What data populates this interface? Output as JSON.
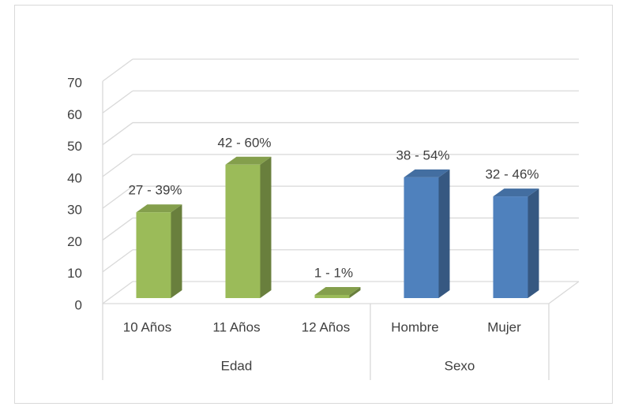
{
  "chart_data": {
    "type": "bar3d",
    "groups": [
      {
        "name": "Edad",
        "color": "#9bbb59",
        "categories": [
          "10 Años",
          "11 Años",
          "12 Años"
        ],
        "values": [
          27,
          42,
          1
        ],
        "value_labels": [
          "27 - 39%",
          "42 - 60%",
          "1 - 1%"
        ]
      },
      {
        "name": "Sexo",
        "color": "#4f81bd",
        "categories": [
          "Hombre",
          "Mujer"
        ],
        "values": [
          38,
          32
        ],
        "value_labels": [
          "38 - 54%",
          "32 - 46%"
        ]
      }
    ],
    "ylim": [
      0,
      70
    ],
    "yticks": [
      0,
      10,
      20,
      30,
      40,
      50,
      60,
      70
    ],
    "grid": true
  }
}
